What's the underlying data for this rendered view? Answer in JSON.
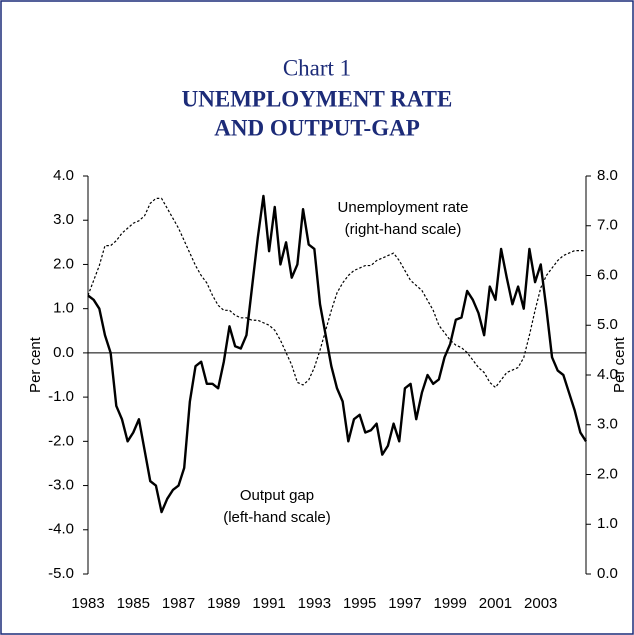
{
  "chart_data": {
    "type": "line",
    "title": "Chart 1",
    "subtitle": [
      "UNEMPLOYMENT RATE",
      "AND OUTPUT-GAP"
    ],
    "ylabel": "Per cent",
    "y2label": "Per cent",
    "x": [
      1983,
      1983.25,
      1983.5,
      1983.75,
      1984,
      1984.25,
      1984.5,
      1984.75,
      1985,
      1985.25,
      1985.5,
      1985.75,
      1986,
      1986.25,
      1986.5,
      1986.75,
      1987,
      1987.25,
      1987.5,
      1987.75,
      1988,
      1988.25,
      1988.5,
      1988.75,
      1989,
      1989.25,
      1989.5,
      1989.75,
      1990,
      1990.25,
      1990.5,
      1990.75,
      1991,
      1991.25,
      1991.5,
      1991.75,
      1992,
      1992.25,
      1992.5,
      1992.75,
      1993,
      1993.25,
      1993.5,
      1993.75,
      1994,
      1994.25,
      1994.5,
      1994.75,
      1995,
      1995.25,
      1995.5,
      1995.75,
      1996,
      1996.25,
      1996.5,
      1996.75,
      1997,
      1997.25,
      1997.5,
      1997.75,
      1998,
      1998.25,
      1998.5,
      1998.75,
      1999,
      1999.25,
      1999.5,
      1999.75,
      2000,
      2000.25,
      2000.5,
      2000.75,
      2001,
      2001.25,
      2001.5,
      2001.75,
      2002,
      2002.25,
      2002.5,
      2002.75,
      2003,
      2003.25,
      2003.5,
      2003.75,
      2004,
      2004.25,
      2004.5,
      2004.75,
      2005
    ],
    "xlim": [
      1983,
      2005
    ],
    "xticks": [
      1983,
      1985,
      1987,
      1989,
      1991,
      1993,
      1995,
      1997,
      1999,
      2001,
      2003
    ],
    "ylim": [
      -5,
      4
    ],
    "yticks": [
      {
        "value": 4,
        "label": "4.0"
      },
      {
        "value": 3,
        "label": "3.0"
      },
      {
        "value": 2,
        "label": "2.0"
      },
      {
        "value": 1,
        "label": "1.0"
      },
      {
        "value": 0,
        "label": "0.0"
      },
      {
        "value": -1,
        "label": "-1.0"
      },
      {
        "value": -2,
        "label": "-2.0"
      },
      {
        "value": -3,
        "label": "-3.0"
      },
      {
        "value": -4,
        "label": "-4.0"
      },
      {
        "value": -5,
        "label": "-5.0"
      }
    ],
    "y2lim": [
      0,
      8
    ],
    "y2ticks": [
      {
        "value": 8,
        "label": "8.0"
      },
      {
        "value": 7,
        "label": "7.0"
      },
      {
        "value": 6,
        "label": "6.0"
      },
      {
        "value": 5,
        "label": "5.0"
      },
      {
        "value": 4,
        "label": "4.0"
      },
      {
        "value": 3,
        "label": "3.0"
      },
      {
        "value": 2,
        "label": "2.0"
      },
      {
        "value": 1,
        "label": "1.0"
      },
      {
        "value": 0,
        "label": "0.0"
      }
    ],
    "series": [
      {
        "name": "Output gap",
        "scale_label": "(left-hand scale)",
        "color": "#000000",
        "dash": "solid",
        "values": [
          1.3,
          1.2,
          1.0,
          0.4,
          0.0,
          -1.2,
          -1.5,
          -2.0,
          -1.8,
          -1.5,
          -2.2,
          -2.9,
          -3.0,
          -3.6,
          -3.3,
          -3.1,
          -3.0,
          -2.6,
          -1.1,
          -0.3,
          -0.2,
          -0.7,
          -0.7,
          -0.8,
          -0.2,
          0.6,
          0.15,
          0.1,
          0.4,
          1.5,
          2.6,
          3.55,
          2.3,
          3.3,
          2.0,
          2.5,
          1.7,
          2.0,
          3.25,
          2.45,
          2.35,
          1.1,
          0.4,
          -0.3,
          -0.8,
          -1.1,
          -2.0,
          -1.5,
          -1.4,
          -1.8,
          -1.75,
          -1.6,
          -2.3,
          -2.1,
          -1.6,
          -2.0,
          -0.8,
          -0.7,
          -1.5,
          -0.9,
          -0.5,
          -0.7,
          -0.6,
          -0.1,
          0.2,
          0.75,
          0.8,
          1.4,
          1.2,
          0.9,
          0.4,
          1.5,
          1.2,
          2.35,
          1.7,
          1.1,
          1.5,
          1.0,
          2.35,
          1.6,
          2.0,
          1.0,
          -0.1,
          -0.4,
          -0.5,
          -0.9,
          -1.3,
          -1.8,
          -2.0
        ]
      },
      {
        "name": "Unemployment rate",
        "scale_label": "(right-hand scale)",
        "color": "#000000",
        "dash": "dotted",
        "axis": "y2",
        "values": [
          5.6,
          5.9,
          6.2,
          6.6,
          6.6,
          6.7,
          6.85,
          6.95,
          7.05,
          7.1,
          7.2,
          7.45,
          7.55,
          7.55,
          7.35,
          7.15,
          6.95,
          6.7,
          6.45,
          6.2,
          6.0,
          5.85,
          5.6,
          5.4,
          5.3,
          5.3,
          5.2,
          5.15,
          5.15,
          5.1,
          5.1,
          5.05,
          5.0,
          4.9,
          4.7,
          4.45,
          4.2,
          3.85,
          3.8,
          3.9,
          4.15,
          4.5,
          4.9,
          5.3,
          5.65,
          5.85,
          6.0,
          6.1,
          6.15,
          6.2,
          6.2,
          6.3,
          6.35,
          6.4,
          6.45,
          6.3,
          6.1,
          5.9,
          5.8,
          5.7,
          5.5,
          5.3,
          5.0,
          4.85,
          4.7,
          4.6,
          4.55,
          4.45,
          4.3,
          4.15,
          4.05,
          3.85,
          3.75,
          3.9,
          4.05,
          4.1,
          4.15,
          4.35,
          4.8,
          5.3,
          5.75,
          6.0,
          6.15,
          6.3,
          6.4,
          6.45,
          6.5,
          6.5,
          6.5
        ]
      }
    ],
    "zero_line": true
  }
}
